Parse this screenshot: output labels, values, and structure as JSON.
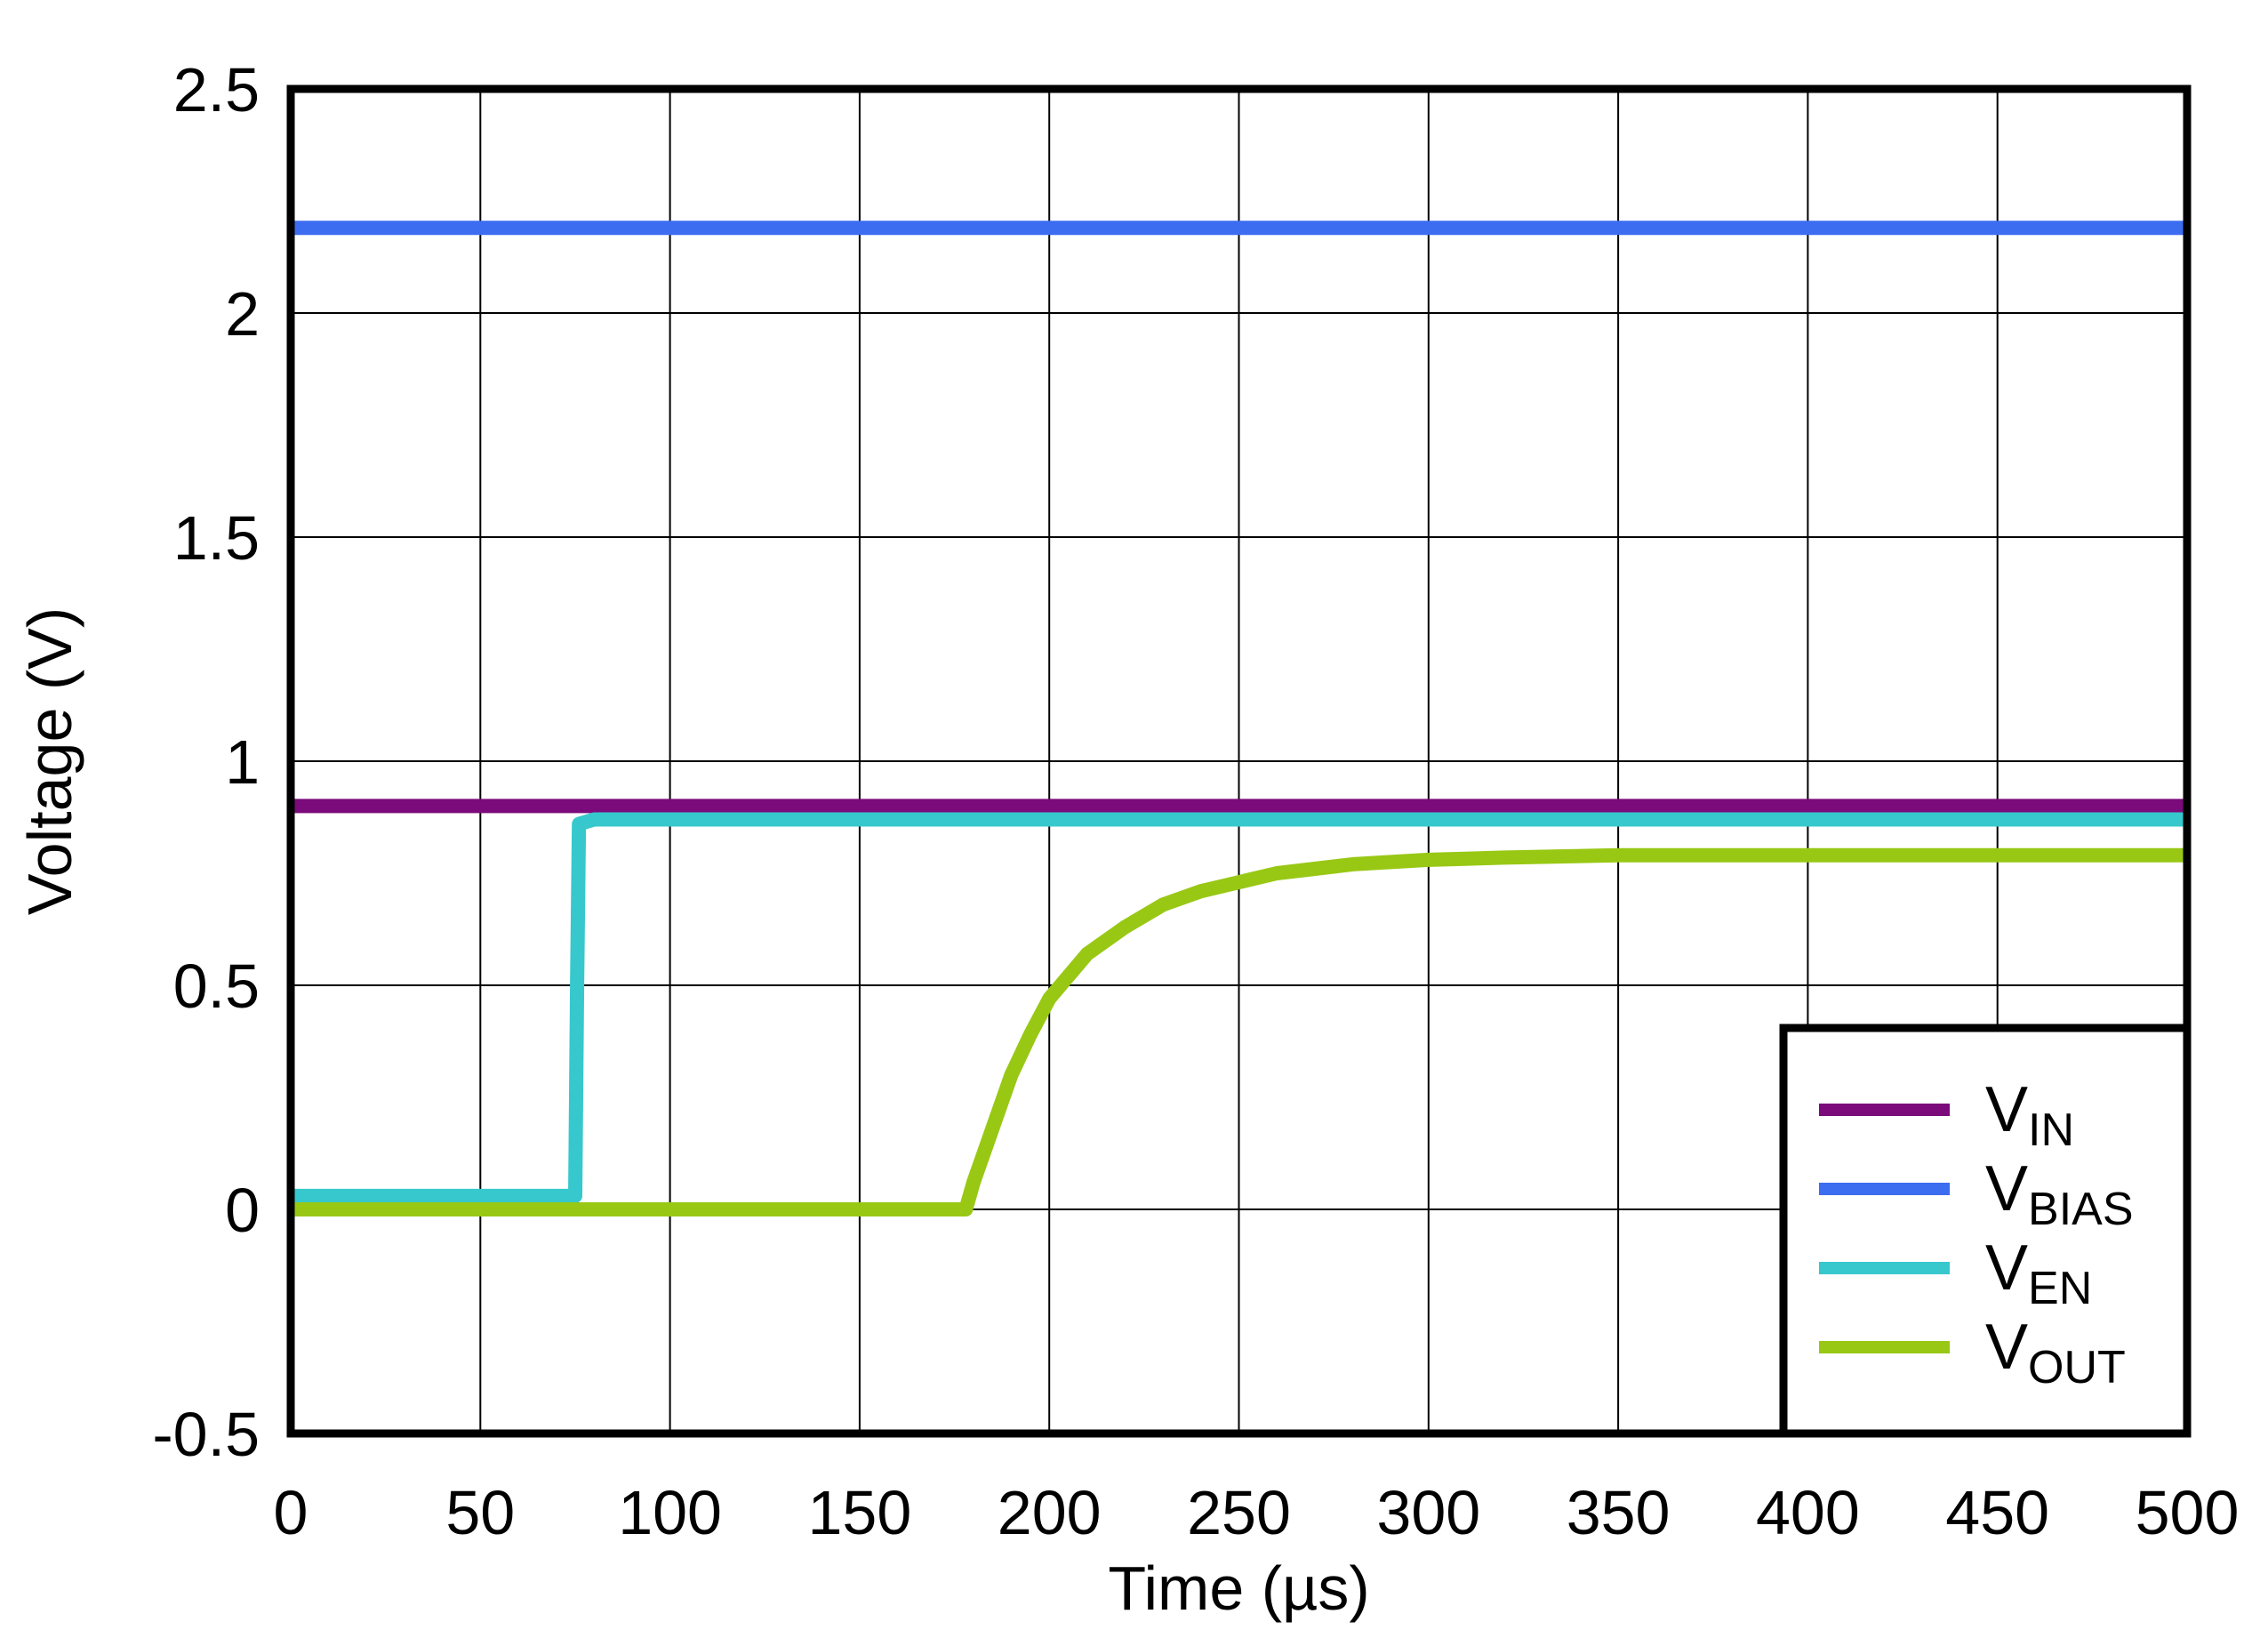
{
  "chart_data": {
    "type": "line",
    "title": "",
    "xlabel": "Time (µs)",
    "ylabel": "Voltage (V)",
    "xlim": [
      0,
      500
    ],
    "ylim": [
      -0.5,
      2.5
    ],
    "xticks": [
      "0",
      "50",
      "100",
      "150",
      "200",
      "250",
      "300",
      "350",
      "400",
      "450",
      "500"
    ],
    "yticks": [
      "-0.5",
      "0",
      "0.5",
      "1",
      "1.5",
      "2",
      "2.5"
    ],
    "grid": true,
    "legend_position": "bottom-right",
    "series": [
      {
        "name": "V_IN",
        "label_main": "V",
        "label_sub": "IN",
        "color": "#7B0A7B",
        "x": [
          0,
          500
        ],
        "y": [
          0.9,
          0.9
        ]
      },
      {
        "name": "V_BIAS",
        "label_main": "V",
        "label_sub": "BIAS",
        "color": "#3C6CF0",
        "x": [
          0,
          500
        ],
        "y": [
          2.19,
          2.19
        ]
      },
      {
        "name": "V_EN",
        "label_main": "V",
        "label_sub": "EN",
        "color": "#36C8CC",
        "x": [
          0,
          75,
          75.5,
          76,
          80,
          500
        ],
        "y": [
          0.03,
          0.03,
          0.5,
          0.86,
          0.87,
          0.87
        ]
      },
      {
        "name": "V_OUT",
        "label_main": "V",
        "label_sub": "OUT",
        "color": "#98C814",
        "x": [
          0,
          178,
          180,
          185,
          190,
          195,
          200,
          210,
          220,
          230,
          240,
          250,
          260,
          270,
          280,
          290,
          300,
          320,
          350,
          400,
          450,
          500
        ],
        "y": [
          0.0,
          0.0,
          0.06,
          0.18,
          0.3,
          0.39,
          0.47,
          0.57,
          0.63,
          0.68,
          0.71,
          0.73,
          0.75,
          0.76,
          0.77,
          0.775,
          0.78,
          0.785,
          0.79,
          0.79,
          0.79,
          0.79
        ]
      }
    ]
  }
}
